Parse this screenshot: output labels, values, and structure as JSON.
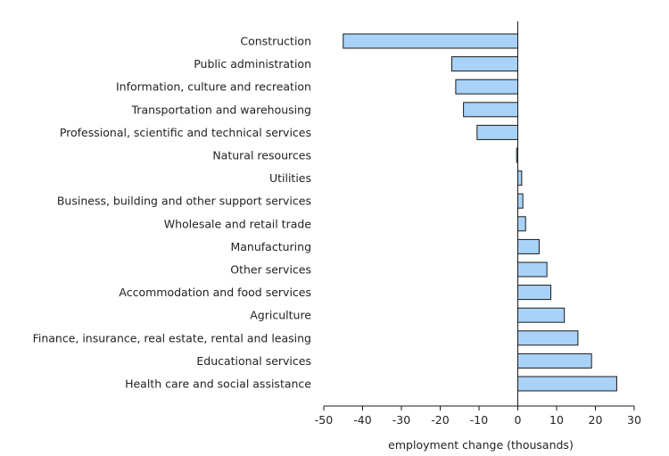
{
  "chart_data": {
    "type": "bar",
    "orientation": "horizontal",
    "categories": [
      "Construction",
      "Public administration",
      "Information, culture and recreation",
      "Transportation and warehousing",
      "Professional, scientific and technical services",
      "Natural resources",
      "Utilities",
      "Business, building and other support services",
      "Wholesale and retail trade",
      "Manufacturing",
      "Other services",
      "Accommodation and food services",
      "Agriculture",
      "Finance, insurance, real estate, rental and leasing",
      "Educational services",
      "Health care and social assistance"
    ],
    "values": [
      -45,
      -17,
      -16,
      -14,
      -10.5,
      -0.3,
      1,
      1.3,
      2,
      5.5,
      7.5,
      8.5,
      12,
      15.5,
      19,
      25.5
    ],
    "xlabel": "employment change (thousands)",
    "ylabel": "",
    "xlim": [
      -50,
      30
    ],
    "xticks": [
      "-50",
      "-40",
      "-30",
      "-20",
      "-10",
      "0",
      "10",
      "20",
      "30"
    ],
    "grid": false,
    "colors": {
      "bar_fill": "#a8d2f7",
      "bar_stroke": "#1a1a1a",
      "axis": "#1a1a1a"
    }
  }
}
